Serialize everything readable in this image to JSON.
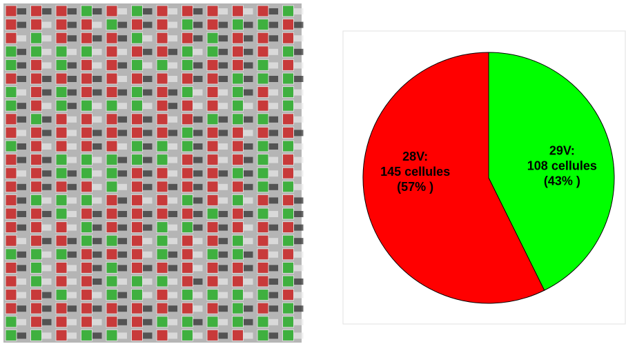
{
  "chart_data": {
    "type": "pie",
    "categories": [
      "28V:",
      "29V:"
    ],
    "values": [
      145,
      108
    ],
    "value_labels": [
      "145 cellules",
      "108 cellules"
    ],
    "percents": [
      57,
      43
    ],
    "percent_labels": [
      "(57% )",
      "(43% )"
    ],
    "colors": [
      "#ff0000",
      "#00ff00"
    ]
  }
}
